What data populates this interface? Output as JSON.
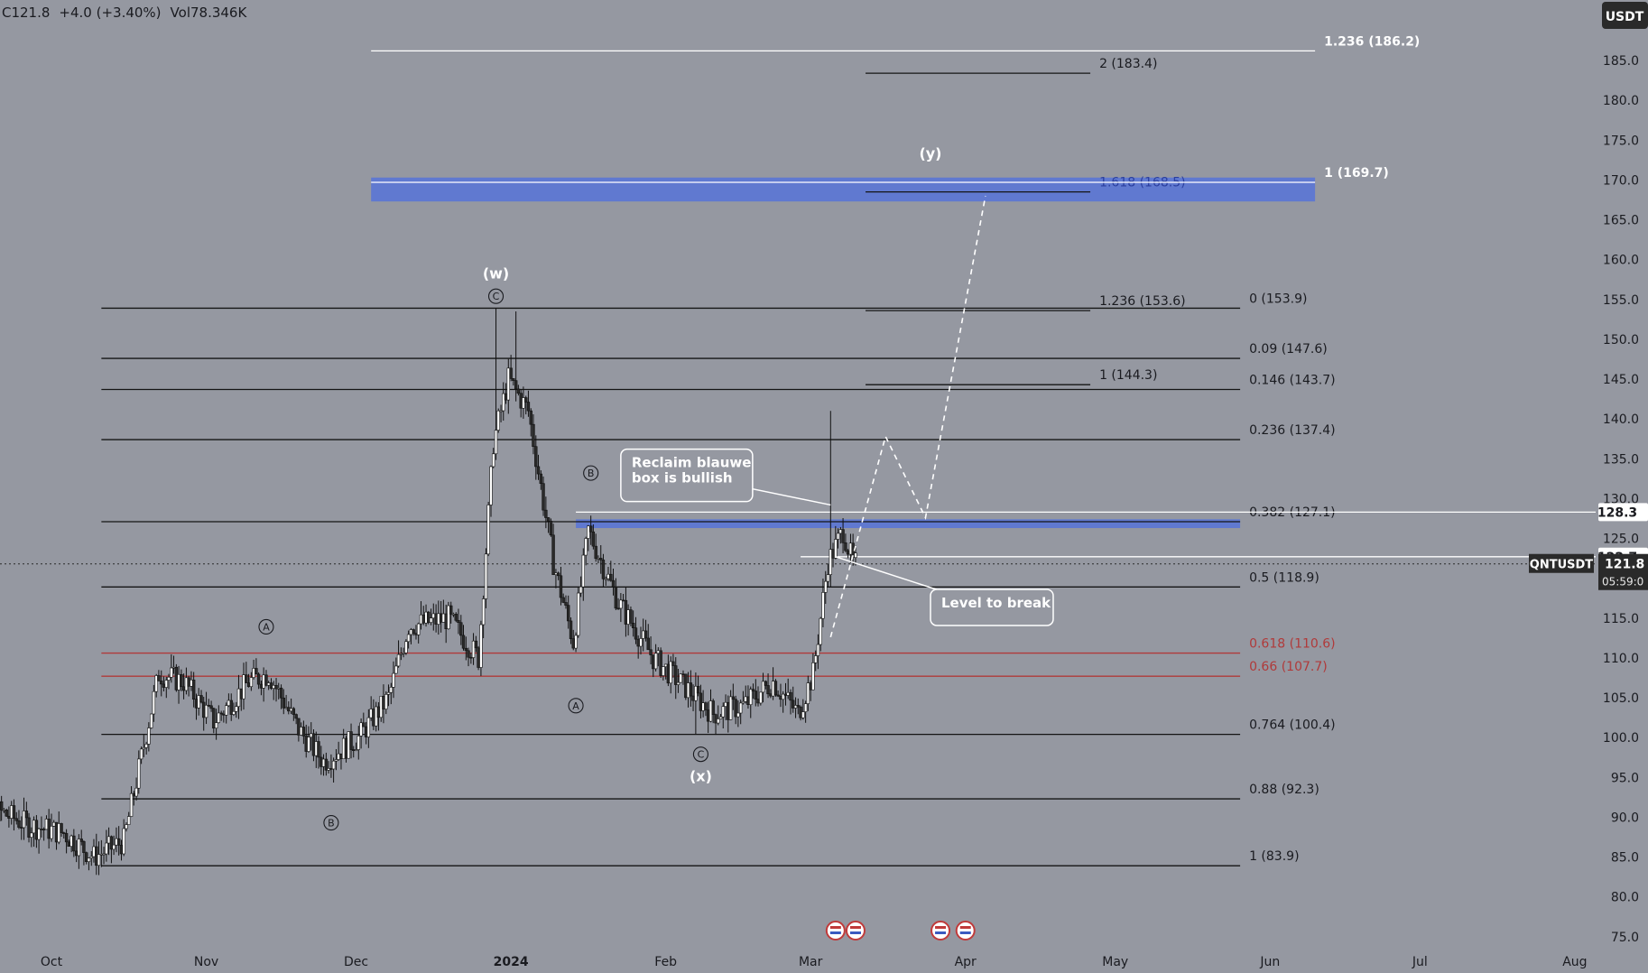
{
  "header": {
    "price": "C121.8",
    "change": "+4.0 (+3.40%)",
    "volume": "Vol78.346K"
  },
  "currency_badge": "USDT",
  "symbol_tag": "QNTUSDT",
  "price_tag": {
    "price": "121.8",
    "countdown": "05:59:0"
  },
  "level_tags": {
    "upper": "128.3",
    "lower": "122.7"
  },
  "colors": {
    "background": "#9598a1",
    "candle_body": "#ffffff",
    "candle_border": "#111111",
    "box": "#4f6fe0",
    "red_level": "#b03a3a"
  },
  "chart_data": {
    "type": "candlestick",
    "title": "",
    "ylim": [
      72,
      192
    ],
    "y_ticks": [
      "185.0",
      "180.0",
      "175.0",
      "170.0",
      "165.0",
      "160.0",
      "155.0",
      "150.0",
      "145.0",
      "140.0",
      "135.0",
      "130.0",
      "125.0",
      "120.0",
      "115.0",
      "110.0",
      "105.0",
      "100.0",
      "95.0",
      "90.0",
      "85.0",
      "80.0",
      "75.0"
    ],
    "x_ticks": [
      "Oct",
      "Nov",
      "Dec",
      "2024",
      "Feb",
      "Mar",
      "Apr",
      "May",
      "Jun",
      "Jul",
      "Aug"
    ],
    "price_anchors": [
      {
        "date": "2023-09-13",
        "price": 90
      },
      {
        "date": "2023-09-20",
        "price": 91
      },
      {
        "date": "2023-09-27",
        "price": 89
      },
      {
        "date": "2023-10-04",
        "price": 88
      },
      {
        "date": "2023-10-10",
        "price": 85
      },
      {
        "date": "2023-10-16",
        "price": 87
      },
      {
        "date": "2023-10-19",
        "price": 96
      },
      {
        "date": "2023-10-23",
        "price": 108
      },
      {
        "date": "2023-10-28",
        "price": 107
      },
      {
        "date": "2023-11-03",
        "price": 102
      },
      {
        "date": "2023-11-10",
        "price": 107
      },
      {
        "date": "2023-11-14",
        "price": 108
      },
      {
        "date": "2023-11-20",
        "price": 101
      },
      {
        "date": "2023-11-25",
        "price": 97
      },
      {
        "date": "2023-12-02",
        "price": 100
      },
      {
        "date": "2023-12-08",
        "price": 105
      },
      {
        "date": "2023-12-12",
        "price": 114
      },
      {
        "date": "2023-12-20",
        "price": 115
      },
      {
        "date": "2023-12-26",
        "price": 110
      },
      {
        "date": "2023-12-29",
        "price": 137
      },
      {
        "date": "2024-01-01",
        "price": 145
      },
      {
        "date": "2024-01-05",
        "price": 141
      },
      {
        "date": "2024-01-10",
        "price": 122
      },
      {
        "date": "2024-01-14",
        "price": 112
      },
      {
        "date": "2024-01-17",
        "price": 126
      },
      {
        "date": "2024-01-23",
        "price": 117
      },
      {
        "date": "2024-01-30",
        "price": 110
      },
      {
        "date": "2024-02-06",
        "price": 106
      },
      {
        "date": "2024-02-11",
        "price": 103
      },
      {
        "date": "2024-02-17",
        "price": 104
      },
      {
        "date": "2024-02-23",
        "price": 107
      },
      {
        "date": "2024-02-28",
        "price": 103
      },
      {
        "date": "2024-03-02",
        "price": 108
      },
      {
        "date": "2024-03-05",
        "price": 122
      },
      {
        "date": "2024-03-08",
        "price": 126
      },
      {
        "date": "2024-03-10",
        "price": 121.8
      }
    ],
    "extremes": [
      {
        "date": "2023-10-11",
        "price": 83.9
      },
      {
        "date": "2023-12-29",
        "price": 153.9
      },
      {
        "date": "2024-01-02",
        "price": 153.5
      },
      {
        "date": "2024-02-07",
        "price": 100.4
      },
      {
        "date": "2024-03-05",
        "price": 141
      }
    ],
    "fib_levels": [
      {
        "label": "0 (153.9)",
        "price": 153.9
      },
      {
        "label": "0.09 (147.6)",
        "price": 147.6
      },
      {
        "label": "0.146 (143.7)",
        "price": 143.7
      },
      {
        "label": "0.236 (137.4)",
        "price": 137.4
      },
      {
        "label": "0.382 (127.1)",
        "price": 127.1
      },
      {
        "label": "0.5 (118.9)",
        "price": 118.9
      },
      {
        "label": "0.618 (110.6)",
        "price": 110.6,
        "red": true
      },
      {
        "label": "0.66 (107.7)",
        "price": 107.7,
        "red": true
      },
      {
        "label": "0.764 (100.4)",
        "price": 100.4
      },
      {
        "label": "0.88 (92.3)",
        "price": 92.3
      },
      {
        "label": "1 (83.9)",
        "price": 83.9
      }
    ],
    "extension_levels": [
      {
        "label": "2 (183.4)",
        "price": 183.4
      },
      {
        "label": "1.618 (168.5)",
        "price": 168.5,
        "blue": true
      },
      {
        "label": "1.236 (153.6)",
        "price": 153.6
      },
      {
        "label": "1 (144.3)",
        "price": 144.3
      }
    ],
    "white_levels": [
      {
        "label": "1.236 (186.2)",
        "price": 186.2
      },
      {
        "label": "1 (169.7)",
        "price": 169.7
      }
    ],
    "boxes": [
      {
        "from": "2024-01-14",
        "to": "2024-05-26",
        "low": 126.3,
        "high": 127.4
      },
      {
        "from": "2023-12-04",
        "to": "2024-06-10",
        "low": 167.3,
        "high": 170.3
      }
    ],
    "horizontal_markers": [
      128.3,
      122.7
    ],
    "wave_labels": [
      {
        "text": "(w)",
        "date": "2023-12-29",
        "price": 158.3,
        "bold": true
      },
      {
        "text": "C",
        "date": "2023-12-29",
        "price": 155.4,
        "circled": true
      },
      {
        "text": "B",
        "date": "2024-01-17",
        "price": 133.2,
        "circled": true
      },
      {
        "text": "A",
        "date": "2023-11-13",
        "price": 113.9,
        "circled": true
      },
      {
        "text": "B",
        "date": "2023-11-26",
        "price": 89.3,
        "circled": true
      },
      {
        "text": "A",
        "date": "2024-01-14",
        "price": 104.0,
        "circled": true
      },
      {
        "text": "C",
        "date": "2024-02-08",
        "price": 97.9,
        "circled": true
      },
      {
        "text": "(x)",
        "date": "2024-02-08",
        "price": 95.2,
        "bold": true
      },
      {
        "text": "(y)",
        "date": "2024-03-25",
        "price": 173.4,
        "bold": true
      }
    ],
    "projection_path": [
      {
        "date": "2024-03-05",
        "price": 112.6
      },
      {
        "date": "2024-03-16",
        "price": 137.8
      },
      {
        "date": "2024-03-24",
        "price": 127.6
      },
      {
        "date": "2024-04-05",
        "price": 168.0
      }
    ],
    "callouts": [
      {
        "id": "reclaim",
        "lines": [
          "Reclaim blauwe",
          "box is bullish"
        ]
      },
      {
        "id": "break",
        "lines": [
          "Level to break"
        ]
      }
    ]
  }
}
